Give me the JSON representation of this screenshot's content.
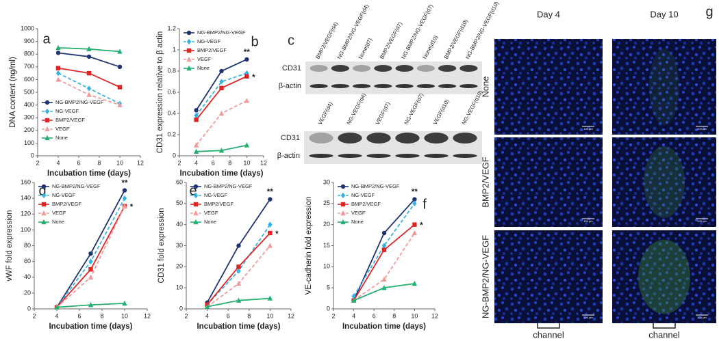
{
  "chart_data": [
    {
      "type": "line",
      "panel": "a",
      "x_label": "Incubation time (days)",
      "y_label": "DNA content (ng/ml)",
      "x": [
        4,
        7,
        10
      ],
      "xlim": [
        2,
        12
      ],
      "xticks": [
        2,
        4,
        6,
        8,
        10,
        12
      ],
      "ylim": [
        0,
        1000
      ],
      "yticks": [
        0,
        100,
        200,
        300,
        400,
        500,
        600,
        700,
        800,
        900,
        1000
      ],
      "legend": "lower left",
      "annotations": [],
      "series": [
        {
          "name": "NG-BMP2/NG-VEGF",
          "color": "#1f3370",
          "marker": "circle",
          "dashed": false,
          "values": [
            810,
            780,
            700
          ]
        },
        {
          "name": "NG-VEGF",
          "color": "#35b2e3",
          "marker": "diamond",
          "dashed": true,
          "values": [
            650,
            530,
            410
          ]
        },
        {
          "name": "BMP2/VEGF",
          "color": "#e02424",
          "marker": "square",
          "dashed": false,
          "values": [
            690,
            650,
            540
          ]
        },
        {
          "name": "VEGF",
          "color": "#f29a9a",
          "marker": "triangle",
          "dashed": true,
          "values": [
            600,
            480,
            400
          ]
        },
        {
          "name": "None",
          "color": "#22b070",
          "marker": "triangle",
          "dashed": false,
          "values": [
            850,
            840,
            820
          ]
        }
      ]
    },
    {
      "type": "line",
      "panel": "b",
      "x_label": "Incubation time (days)",
      "y_label": "CD31 expression relative to β actin",
      "x": [
        4,
        7,
        10
      ],
      "xlim": [
        2,
        12
      ],
      "xticks": [
        2,
        4,
        6,
        8,
        10,
        12
      ],
      "ylim": [
        0,
        1.2
      ],
      "yticks": [
        0,
        0.2,
        0.4,
        0.6,
        0.8,
        1,
        1.2
      ],
      "legend": "upper left",
      "annotations": [
        "**",
        "*"
      ],
      "series": [
        {
          "name": "NG-BMP2/NG-VEGF",
          "color": "#1f3370",
          "marker": "circle",
          "dashed": false,
          "values": [
            0.43,
            0.8,
            0.91
          ]
        },
        {
          "name": "NG-VEGF",
          "color": "#35b2e3",
          "marker": "diamond",
          "dashed": true,
          "values": [
            0.38,
            0.7,
            0.78
          ]
        },
        {
          "name": "BMP2/VEGF",
          "color": "#e02424",
          "marker": "square",
          "dashed": false,
          "values": [
            0.34,
            0.64,
            0.75
          ]
        },
        {
          "name": "VEGF",
          "color": "#f29a9a",
          "marker": "triangle",
          "dashed": true,
          "values": [
            0.1,
            0.4,
            0.52
          ]
        },
        {
          "name": "None",
          "color": "#22b070",
          "marker": "triangle",
          "dashed": false,
          "values": [
            0.04,
            0.05,
            0.1
          ]
        }
      ]
    },
    {
      "type": "line",
      "panel": "d",
      "x_label": "Incubation time (days)",
      "y_label": "vWF fold expression",
      "x": [
        4,
        7,
        10
      ],
      "xlim": [
        2,
        12
      ],
      "xticks": [
        2,
        4,
        6,
        8,
        10,
        12
      ],
      "ylim": [
        0,
        160
      ],
      "yticks": [
        0,
        20,
        40,
        60,
        80,
        100,
        120,
        140,
        160
      ],
      "legend": "upper left",
      "annotations": [
        "**",
        "*"
      ],
      "series": [
        {
          "name": "NG-BMP2/NG-VEGF",
          "color": "#1f3370",
          "marker": "circle",
          "dashed": false,
          "values": [
            2,
            70,
            150
          ]
        },
        {
          "name": "NG-VEGF",
          "color": "#35b2e3",
          "marker": "diamond",
          "dashed": true,
          "values": [
            2,
            60,
            140
          ]
        },
        {
          "name": "BMP2/VEGF",
          "color": "#e02424",
          "marker": "square",
          "dashed": false,
          "values": [
            2,
            50,
            130
          ]
        },
        {
          "name": "VEGF",
          "color": "#f29a9a",
          "marker": "triangle",
          "dashed": true,
          "values": [
            2,
            40,
            130
          ]
        },
        {
          "name": "None",
          "color": "#22b070",
          "marker": "triangle",
          "dashed": false,
          "values": [
            2,
            5,
            7
          ]
        }
      ]
    },
    {
      "type": "line",
      "panel": "e",
      "x_label": "Incubation time (days)",
      "y_label": "CD31 fold expression",
      "x": [
        4,
        7,
        10
      ],
      "xlim": [
        2,
        12
      ],
      "xticks": [
        2,
        4,
        6,
        8,
        10,
        12
      ],
      "ylim": [
        0,
        60
      ],
      "yticks": [
        0,
        10,
        20,
        30,
        40,
        50,
        60
      ],
      "legend": "upper left",
      "annotations": [
        "**",
        "*"
      ],
      "series": [
        {
          "name": "NG-BMP2/NG-VEGF",
          "color": "#1f3370",
          "marker": "circle",
          "dashed": false,
          "values": [
            3,
            30,
            52
          ]
        },
        {
          "name": "NG-VEGF",
          "color": "#35b2e3",
          "marker": "diamond",
          "dashed": true,
          "values": [
            2,
            18,
            40
          ]
        },
        {
          "name": "BMP2/VEGF",
          "color": "#e02424",
          "marker": "square",
          "dashed": false,
          "values": [
            2,
            20,
            36
          ]
        },
        {
          "name": "VEGF",
          "color": "#f29a9a",
          "marker": "triangle",
          "dashed": true,
          "values": [
            1,
            12,
            30
          ]
        },
        {
          "name": "None",
          "color": "#22b070",
          "marker": "triangle",
          "dashed": false,
          "values": [
            1,
            4,
            5
          ]
        }
      ]
    },
    {
      "type": "line",
      "panel": "f",
      "x_label": "Incubation time (days)",
      "y_label": "VE-cadherin fold expression",
      "x": [
        4,
        7,
        10
      ],
      "xlim": [
        2,
        12
      ],
      "xticks": [
        2,
        4,
        6,
        8,
        10,
        12
      ],
      "ylim": [
        0,
        30
      ],
      "yticks": [
        0,
        5,
        10,
        15,
        20,
        25,
        30
      ],
      "legend": "upper left",
      "annotations": [
        "**",
        "*"
      ],
      "series": [
        {
          "name": "NG-BMP2/NG-VEGF",
          "color": "#1f3370",
          "marker": "circle",
          "dashed": false,
          "values": [
            2,
            18,
            26
          ]
        },
        {
          "name": "NG-VEGF",
          "color": "#35b2e3",
          "marker": "diamond",
          "dashed": true,
          "values": [
            3,
            15,
            25
          ]
        },
        {
          "name": "BMP2/VEGF",
          "color": "#e02424",
          "marker": "square",
          "dashed": false,
          "values": [
            2,
            14,
            20
          ]
        },
        {
          "name": "VEGF",
          "color": "#f29a9a",
          "marker": "triangle",
          "dashed": true,
          "values": [
            2,
            7,
            18
          ]
        },
        {
          "name": "None",
          "color": "#22b070",
          "marker": "triangle",
          "dashed": false,
          "values": [
            2,
            5,
            6
          ]
        }
      ]
    }
  ],
  "blots": {
    "panel": "c",
    "top": {
      "lanes": [
        "BMP2/VEGF(d4)",
        "NG-BMP2/NG-VEGF(d4)",
        "None(d7)",
        "BMP2/VEGF(d7)",
        "NG-BMP2/NG-VEGF(d7)",
        "None(d10)",
        "BMP2/VEGF(d10)",
        "NG-BMP2/NG-VEGF(d10)"
      ],
      "rows": [
        "CD31",
        "β-actin"
      ]
    },
    "bottom": {
      "lanes": [
        "VEGF(d4)",
        "NG-VEGF(d4)",
        "VEGF(d7)",
        "NG-VEGF(d7)",
        "VEGF(d10)",
        "NG-VEGF(d10)"
      ],
      "rows": [
        "CD31",
        "β-actin"
      ]
    }
  },
  "micrographs": {
    "panel": "g",
    "columns": [
      "Day 4",
      "Day 10"
    ],
    "rows": [
      "None",
      "BMP2/VEGF",
      "NG-BMP2/NG-VEGF"
    ],
    "scale_bar": "100 μm",
    "channel_label": "channel"
  }
}
